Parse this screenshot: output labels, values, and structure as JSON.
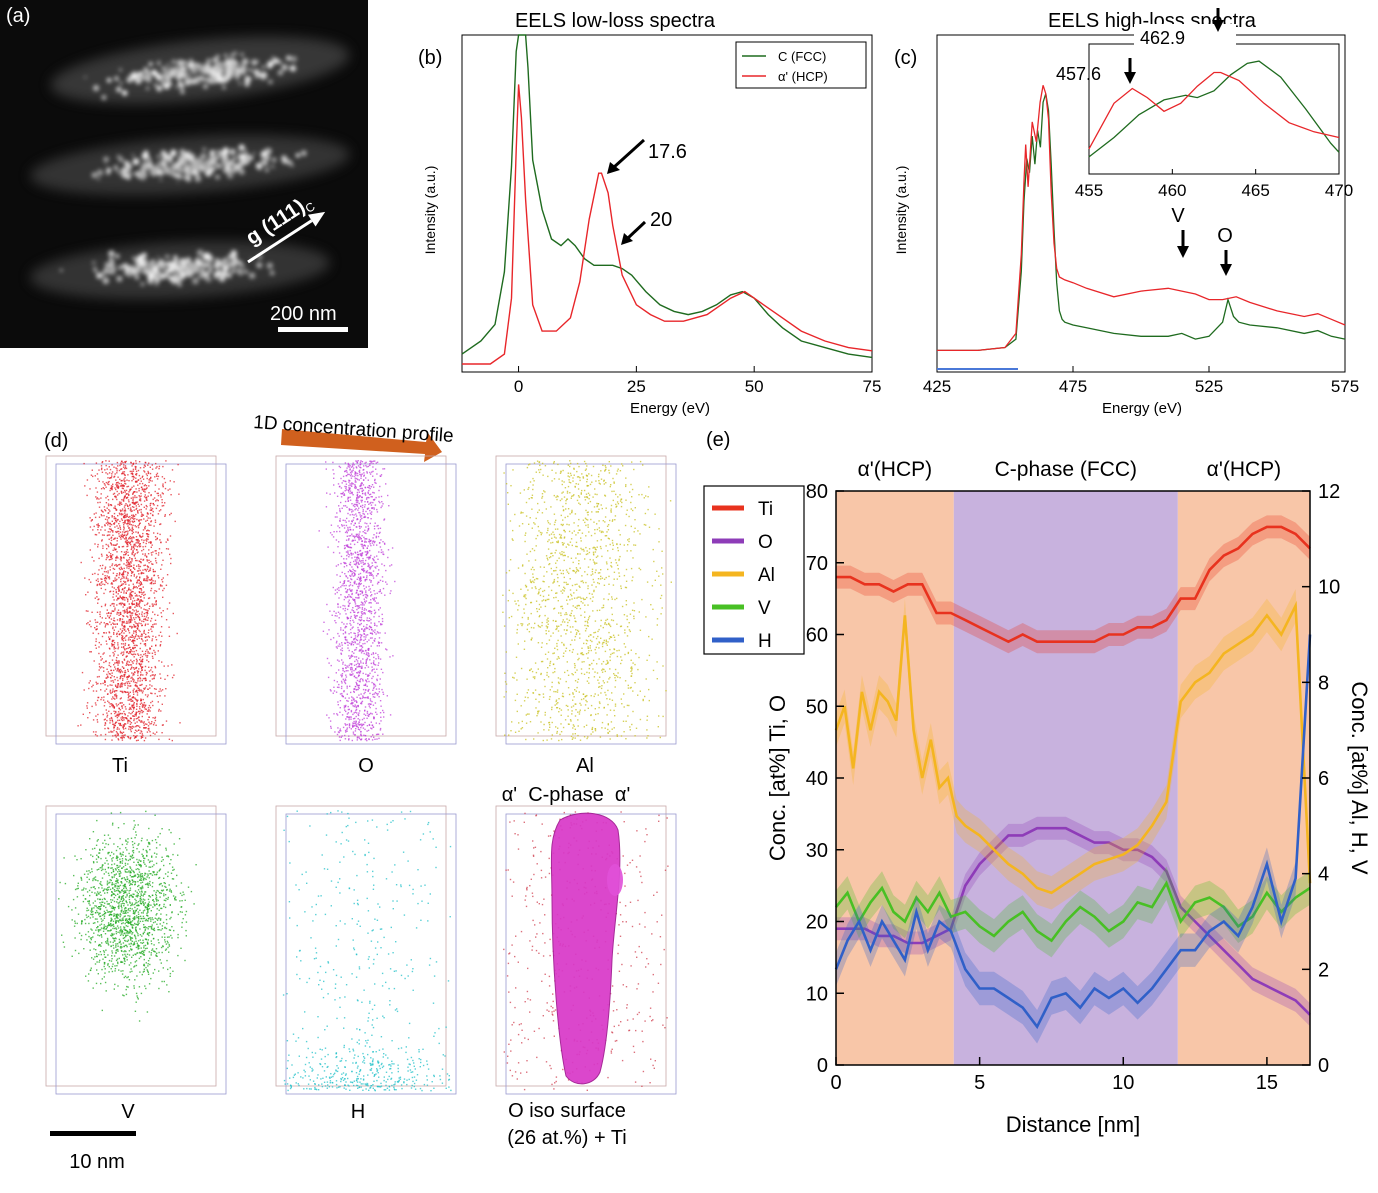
{
  "panel_a": {
    "label": "(a)",
    "vector": "g (111)",
    "vector_sub": "C",
    "scalebar": "200 nm"
  },
  "panel_b": {
    "label": "(b)",
    "title": "EELS low-loss spectra",
    "xlabel": "Energy (eV)",
    "ylabel": "Intensity (a.u.)",
    "xticks": [
      "0",
      "25",
      "50",
      "75"
    ],
    "legend": [
      "C (FCC)",
      "α' (HCP)"
    ],
    "annotations": [
      "17.6",
      "20"
    ],
    "colors": {
      "fcc": "#1f6b1f",
      "hcp": "#e8262a"
    }
  },
  "panel_c": {
    "label": "(c)",
    "title": "EELS high-loss spectra",
    "xlabel": "Energy (eV)",
    "ylabel": "Intensity (a.u.)",
    "xticks": [
      "425",
      "475",
      "525",
      "575"
    ],
    "inset_xticks": [
      "455",
      "460",
      "465",
      "470"
    ],
    "annotations": [
      "457.6",
      "462.9",
      "V",
      "O"
    ]
  },
  "panel_d": {
    "label": "(d)",
    "arrow_label": "1D concentration profile",
    "maps": [
      {
        "name": "Ti",
        "color": "#e0202a"
      },
      {
        "name": "O",
        "color": "#c040d8"
      },
      {
        "name": "Al",
        "color": "#c8c020"
      },
      {
        "name": "V",
        "color": "#22aa22"
      },
      {
        "name": "H",
        "color": "#20c0c8"
      }
    ],
    "iso_top": "α'  C-phase  α'",
    "iso_caption_1": "O iso surface",
    "iso_caption_2": "(26 at.%) + Ti",
    "scalebar": "10 nm"
  },
  "chart_data": [
    {
      "type": "line",
      "panel": "b",
      "title": "EELS low-loss spectra",
      "xlabel": "Energy (eV)",
      "ylabel": "Intensity (a.u.)",
      "xlim": [
        -12,
        75
      ],
      "ylim": [
        0,
        1
      ],
      "series": [
        {
          "name": "C (FCC)",
          "x": [
            -12,
            -8,
            -5,
            -3,
            -1.5,
            -0.5,
            0,
            0.5,
            1.5,
            2,
            3,
            5,
            7,
            9,
            10.5,
            12,
            14,
            16,
            18,
            20,
            22,
            24,
            27,
            30,
            33,
            36,
            39,
            42,
            45,
            47.5,
            50,
            53,
            56,
            60,
            65,
            70,
            75
          ],
          "y": [
            0.03,
            0.07,
            0.12,
            0.28,
            0.6,
            0.95,
            1.0,
            1.0,
            1.0,
            0.9,
            0.62,
            0.47,
            0.38,
            0.36,
            0.38,
            0.36,
            0.32,
            0.3,
            0.3,
            0.3,
            0.29,
            0.27,
            0.22,
            0.18,
            0.16,
            0.15,
            0.16,
            0.18,
            0.21,
            0.22,
            0.2,
            0.15,
            0.11,
            0.07,
            0.05,
            0.03,
            0.02
          ]
        },
        {
          "name": "α' (HCP)",
          "x": [
            -12,
            -6,
            -3,
            -1.5,
            -0.5,
            0,
            0.6,
            1.5,
            3,
            5,
            8,
            11,
            13,
            15,
            17,
            17.6,
            19,
            20,
            22,
            25,
            28,
            31,
            35,
            40,
            45,
            48,
            52,
            56,
            60,
            65,
            70,
            75
          ],
          "y": [
            0.0,
            0.0,
            0.03,
            0.2,
            0.65,
            0.85,
            0.75,
            0.5,
            0.18,
            0.1,
            0.1,
            0.14,
            0.25,
            0.44,
            0.58,
            0.58,
            0.52,
            0.42,
            0.27,
            0.18,
            0.15,
            0.13,
            0.13,
            0.15,
            0.2,
            0.22,
            0.18,
            0.14,
            0.1,
            0.07,
            0.05,
            0.04
          ]
        }
      ],
      "annotations": [
        {
          "text": "17.6",
          "x": 17.6
        },
        {
          "text": "20",
          "x": 20
        }
      ]
    },
    {
      "type": "line",
      "panel": "c",
      "title": "EELS high-loss spectra",
      "xlabel": "Energy (eV)",
      "ylabel": "Intensity (a.u.)",
      "xlim": [
        425,
        575
      ],
      "ylim": [
        0,
        1
      ],
      "series": [
        {
          "name": "C (FCC)",
          "x": [
            425,
            440,
            450,
            454,
            456,
            457,
            458,
            459,
            460,
            461,
            462,
            463,
            464,
            465,
            466,
            467,
            468,
            469,
            470,
            471,
            472,
            475,
            480,
            490,
            500,
            510,
            515,
            520,
            525,
            528,
            530,
            532,
            534,
            536,
            540,
            550,
            560,
            565,
            570,
            575
          ],
          "y": [
            0.02,
            0.02,
            0.03,
            0.06,
            0.3,
            0.55,
            0.7,
            0.65,
            0.78,
            0.68,
            0.8,
            0.74,
            0.9,
            0.93,
            0.87,
            0.68,
            0.45,
            0.26,
            0.16,
            0.13,
            0.12,
            0.11,
            0.1,
            0.08,
            0.07,
            0.07,
            0.08,
            0.06,
            0.07,
            0.1,
            0.12,
            0.2,
            0.14,
            0.12,
            0.11,
            0.1,
            0.08,
            0.09,
            0.07,
            0.06
          ]
        },
        {
          "name": "α' (HCP)",
          "x": [
            425,
            440,
            450,
            454,
            456,
            457,
            457.6,
            458.5,
            460,
            461.5,
            462.9,
            464,
            465,
            466,
            467,
            468,
            469,
            470,
            472,
            475,
            480,
            490,
            500,
            510,
            515,
            520,
            525,
            530,
            535,
            540,
            550,
            560,
            565,
            570,
            575
          ],
          "y": [
            0.02,
            0.02,
            0.03,
            0.08,
            0.36,
            0.62,
            0.75,
            0.6,
            0.83,
            0.76,
            0.9,
            0.96,
            0.93,
            0.84,
            0.58,
            0.4,
            0.31,
            0.28,
            0.27,
            0.26,
            0.24,
            0.21,
            0.23,
            0.24,
            0.23,
            0.22,
            0.2,
            0.2,
            0.21,
            0.19,
            0.16,
            0.14,
            0.15,
            0.13,
            0.11
          ]
        }
      ],
      "annotations": [
        {
          "text": "V",
          "x": 513
        },
        {
          "text": "O",
          "x": 532
        }
      ],
      "inset": {
        "xlim": [
          455,
          470
        ],
        "xticks": [
          455,
          460,
          465,
          470
        ],
        "series": [
          {
            "name": "C (FCC)",
            "x": [
              455,
              456.5,
              458,
              459.5,
              460.8,
              461.5,
              462.5,
              463.5,
              464.5,
              465.2,
              466.5,
              468,
              469.5,
              470
            ],
            "y": [
              0.08,
              0.25,
              0.45,
              0.58,
              0.62,
              0.6,
              0.66,
              0.8,
              0.9,
              0.92,
              0.78,
              0.5,
              0.2,
              0.12
            ]
          },
          {
            "name": "α' (HCP)",
            "x": [
              455,
              456.5,
              457.6,
              458.5,
              459.5,
              460.5,
              461.5,
              462.5,
              462.9,
              464,
              465.5,
              467,
              468.5,
              470
            ],
            "y": [
              0.15,
              0.55,
              0.68,
              0.6,
              0.48,
              0.55,
              0.7,
              0.82,
              0.82,
              0.75,
              0.55,
              0.38,
              0.3,
              0.25
            ]
          }
        ],
        "annotations": [
          {
            "text": "457.6",
            "x": 457.6
          },
          {
            "text": "462.9",
            "x": 462.9
          }
        ]
      }
    },
    {
      "type": "line",
      "panel": "e",
      "label": "(e)",
      "xlabel": "Distance [nm]",
      "ylabel_left": "Conc. [at%] Ti, O",
      "ylabel_right": "Conc. [at%] Al, H, V",
      "xlim": [
        0,
        16.5
      ],
      "ylim_left": [
        0,
        80
      ],
      "ylim_right": [
        0,
        12
      ],
      "xticks": [
        0,
        5,
        10,
        15
      ],
      "yticks_left": [
        0,
        10,
        20,
        30,
        40,
        50,
        60,
        70,
        80
      ],
      "yticks_right": [
        0,
        2,
        4,
        6,
        8,
        10,
        12
      ],
      "regions": [
        {
          "label": "α'(HCP)",
          "from": 0,
          "to": 4.1,
          "color": "#f8c6a8"
        },
        {
          "label": "C-phase (FCC)",
          "from": 4.1,
          "to": 11.9,
          "color": "#c8b2de"
        },
        {
          "label": "α'(HCP)",
          "from": 11.9,
          "to": 16.5,
          "color": "#f8c6a8"
        }
      ],
      "series": [
        {
          "name": "Ti",
          "axis": "left",
          "color": "#e8321e",
          "x": [
            0,
            0.5,
            1,
            1.5,
            2,
            2.5,
            3,
            3.5,
            4,
            4.5,
            5,
            5.5,
            6,
            6.5,
            7,
            7.5,
            8,
            8.5,
            9,
            9.5,
            10,
            10.5,
            11,
            11.5,
            12,
            12.5,
            13,
            13.5,
            14,
            14.5,
            15,
            15.5,
            16,
            16.5
          ],
          "y": [
            68,
            68,
            67,
            67,
            66,
            67,
            67,
            63,
            63,
            62,
            61,
            60,
            59,
            60,
            59,
            59,
            59,
            59,
            59,
            60,
            60,
            61,
            61,
            62,
            65,
            65,
            69,
            71,
            72,
            74,
            75,
            75,
            74,
            72
          ]
        },
        {
          "name": "O",
          "axis": "left",
          "color": "#8e3cb8",
          "x": [
            0,
            0.5,
            1,
            1.5,
            2,
            2.5,
            3,
            3.5,
            4,
            4.5,
            5,
            5.5,
            6,
            6.5,
            7,
            7.5,
            8,
            8.5,
            9,
            9.5,
            10,
            10.5,
            11,
            11.5,
            12,
            12.5,
            13,
            13.5,
            14,
            14.5,
            15,
            15.5,
            16,
            16.5
          ],
          "y": [
            19,
            19,
            19,
            18,
            18,
            17,
            17,
            18,
            19,
            25,
            28,
            30,
            32,
            32,
            33,
            33,
            33,
            32,
            31,
            31,
            30,
            30,
            29,
            27,
            22,
            20,
            18,
            16,
            14,
            12,
            11,
            10,
            9,
            7
          ]
        },
        {
          "name": "Al",
          "axis": "right",
          "color": "#f4b520",
          "x": [
            0,
            0.3,
            0.6,
            0.9,
            1.2,
            1.5,
            1.8,
            2.1,
            2.4,
            2.7,
            3,
            3.3,
            3.6,
            3.9,
            4.2,
            4.5,
            5,
            5.5,
            6,
            6.5,
            7,
            7.5,
            8,
            8.5,
            9,
            9.5,
            10,
            10.5,
            11,
            11.5,
            12,
            12.5,
            13,
            13.5,
            14,
            14.5,
            15,
            15.5,
            16,
            16.5
          ],
          "y": [
            7.0,
            7.5,
            6.2,
            7.8,
            7.0,
            7.8,
            7.6,
            7.2,
            9.4,
            7.0,
            6.0,
            6.8,
            5.8,
            6.0,
            5.2,
            5.0,
            4.8,
            4.5,
            4.2,
            4.0,
            3.7,
            3.6,
            3.8,
            4.0,
            4.2,
            4.3,
            4.4,
            4.6,
            5.0,
            5.5,
            7.6,
            8.0,
            8.2,
            8.6,
            8.8,
            9.0,
            9.4,
            9.0,
            9.6,
            3.8
          ]
        },
        {
          "name": "V",
          "axis": "right",
          "color": "#48c024",
          "x": [
            0,
            0.4,
            0.8,
            1.2,
            1.6,
            2,
            2.4,
            2.8,
            3.2,
            3.6,
            4,
            4.5,
            5,
            5.5,
            6,
            6.5,
            7,
            7.5,
            8,
            8.5,
            9,
            9.5,
            10,
            10.5,
            11,
            11.5,
            12,
            12.5,
            13,
            13.5,
            14,
            14.5,
            15,
            15.5,
            16,
            16.5
          ],
          "y": [
            3.3,
            3.6,
            3.0,
            3.4,
            3.7,
            3.2,
            3.0,
            3.5,
            3.2,
            3.6,
            3.1,
            3.2,
            2.9,
            2.7,
            3.0,
            3.2,
            2.8,
            2.6,
            3.0,
            3.3,
            3.1,
            2.8,
            3.0,
            3.4,
            3.3,
            3.8,
            3.0,
            3.4,
            3.5,
            3.3,
            2.9,
            3.1,
            3.6,
            3.2,
            3.5,
            3.7
          ]
        },
        {
          "name": "H",
          "axis": "right",
          "color": "#3060c8",
          "x": [
            0,
            0.4,
            0.8,
            1.2,
            1.6,
            2,
            2.4,
            2.8,
            3.2,
            3.6,
            4,
            4.5,
            5,
            5.5,
            6,
            6.5,
            7,
            7.5,
            8,
            8.5,
            9,
            9.5,
            10,
            10.5,
            11,
            11.5,
            12,
            12.5,
            13,
            13.5,
            14,
            14.5,
            15,
            15.5,
            16,
            16.5
          ],
          "y": [
            2.0,
            2.6,
            3.0,
            2.4,
            3.0,
            2.6,
            2.2,
            3.2,
            2.4,
            3.0,
            2.8,
            2.0,
            1.6,
            1.6,
            1.4,
            1.2,
            0.8,
            1.4,
            1.5,
            1.2,
            1.6,
            1.4,
            1.6,
            1.3,
            1.6,
            2.0,
            2.4,
            2.4,
            2.8,
            3.0,
            2.7,
            3.3,
            4.2,
            3.0,
            3.9,
            9.0
          ]
        }
      ]
    }
  ]
}
